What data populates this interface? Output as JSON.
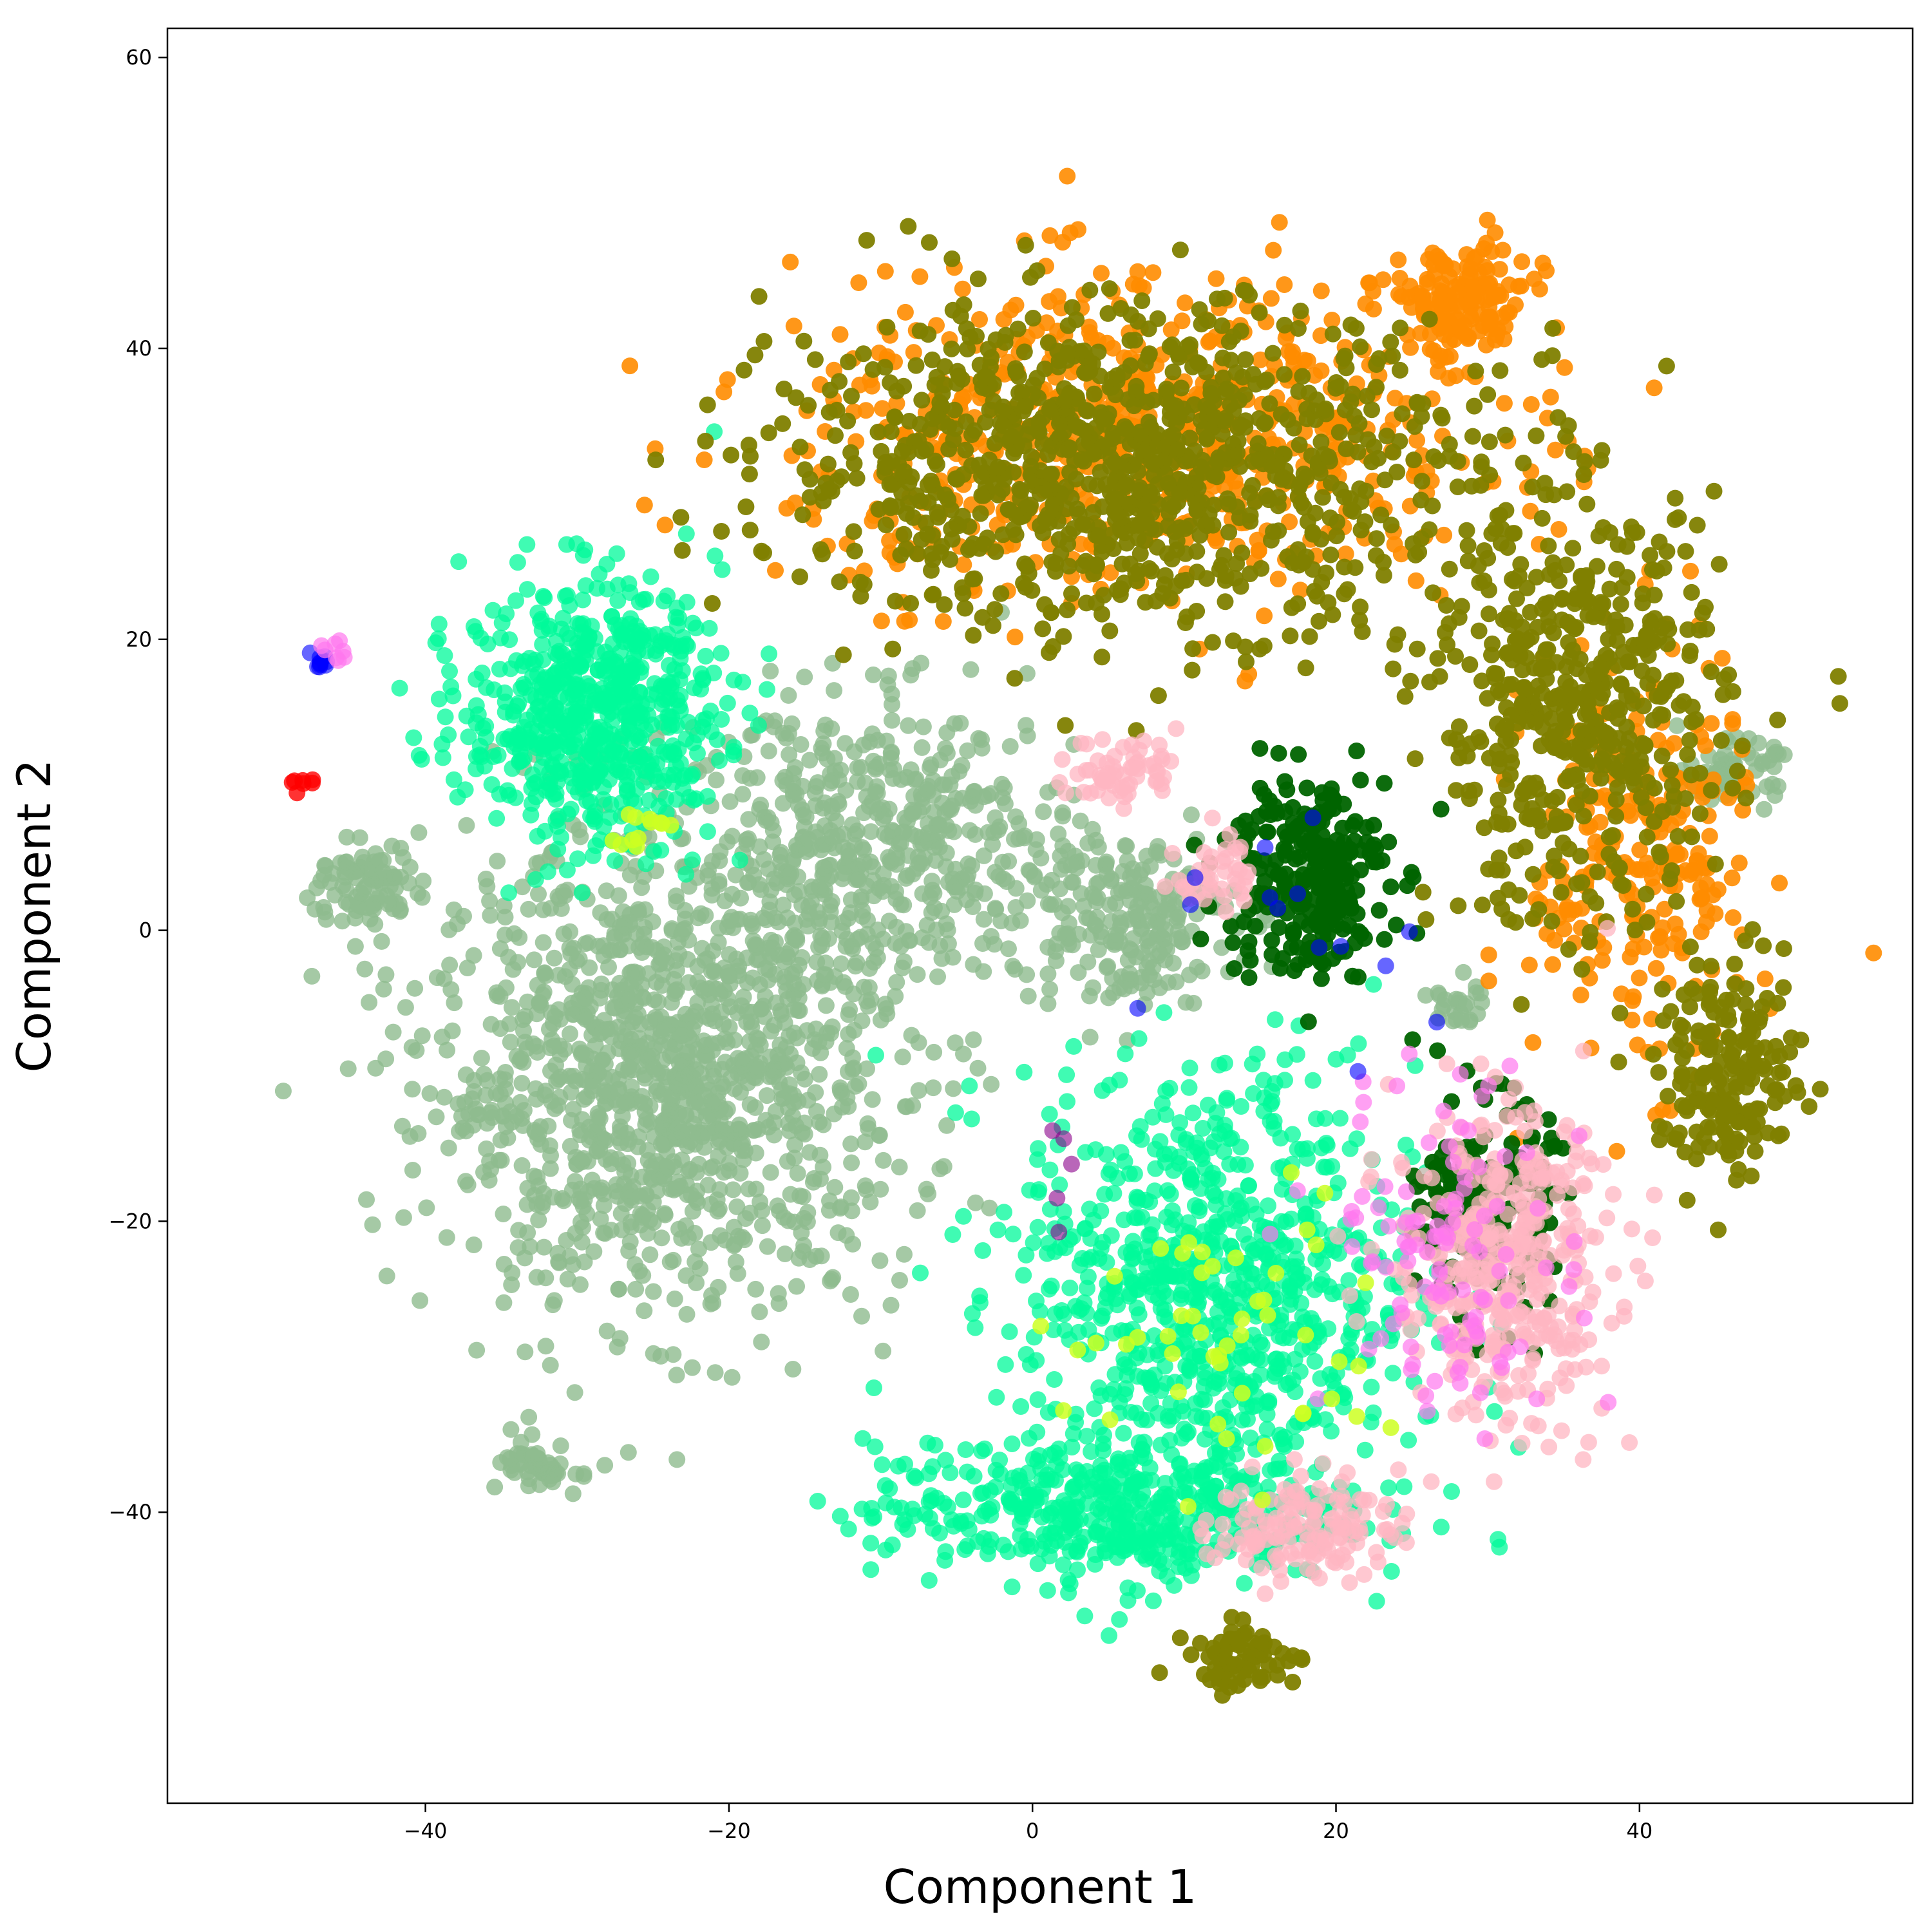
{
  "chart_data": {
    "type": "scatter",
    "title": "",
    "xlabel": "Component 1",
    "ylabel": "Component 2",
    "xlim": [
      -57,
      58
    ],
    "ylim": [
      -60,
      62
    ],
    "xticks": [
      -40,
      -20,
      0,
      20,
      40
    ],
    "yticks": [
      -40,
      -20,
      0,
      20,
      40,
      60
    ],
    "xtick_labels": [
      "−40",
      "−20",
      "0",
      "20",
      "40"
    ],
    "ytick_labels": [
      "−40",
      "−20",
      "0",
      "20",
      "40",
      "60"
    ],
    "grid": false,
    "legend": "none",
    "clusters": [
      {
        "color": "#8fbc8f",
        "alpha": 0.8,
        "center": [
          -24,
          -10
        ],
        "spread": [
          13,
          13
        ],
        "n": 1300,
        "label": ""
      },
      {
        "color": "#8fbc8f",
        "alpha": 0.8,
        "center": [
          -10,
          6
        ],
        "spread": [
          11,
          8
        ],
        "n": 500,
        "label": ""
      },
      {
        "color": "#8fbc8f",
        "alpha": 0.8,
        "center": [
          6,
          1
        ],
        "spread": [
          6,
          5
        ],
        "n": 220,
        "label": ""
      },
      {
        "color": "#8fbc8f",
        "alpha": 0.8,
        "center": [
          -44,
          3
        ],
        "spread": [
          3,
          2.5
        ],
        "n": 90,
        "label": ""
      },
      {
        "color": "#8fbc8f",
        "alpha": 0.8,
        "center": [
          -32,
          -37
        ],
        "spread": [
          2.5,
          1.5
        ],
        "n": 50,
        "label": ""
      },
      {
        "color": "#8fbc8f",
        "alpha": 0.8,
        "center": [
          46,
          11
        ],
        "spread": [
          2.5,
          1.6
        ],
        "n": 70,
        "label": ""
      },
      {
        "color": "#8fbc8f",
        "alpha": 0.8,
        "center": [
          28,
          -5
        ],
        "spread": [
          1.5,
          1.5
        ],
        "n": 25,
        "label": ""
      },
      {
        "color": "#00fa9a",
        "alpha": 0.75,
        "center": [
          -29,
          15
        ],
        "spread": [
          7,
          7.5
        ],
        "n": 650,
        "label": ""
      },
      {
        "color": "#00fa9a",
        "alpha": 0.75,
        "center": [
          12,
          -25
        ],
        "spread": [
          11,
          13
        ],
        "n": 850,
        "label": ""
      },
      {
        "color": "#00fa9a",
        "alpha": 0.75,
        "center": [
          5,
          -40
        ],
        "spread": [
          13,
          4
        ],
        "n": 450,
        "label": ""
      },
      {
        "color": "#ff8c00",
        "alpha": 0.9,
        "center": [
          7,
          34
        ],
        "spread": [
          19,
          9
        ],
        "n": 650,
        "label": ""
      },
      {
        "color": "#ff8c00",
        "alpha": 0.9,
        "center": [
          28,
          43
        ],
        "spread": [
          4,
          3.5
        ],
        "n": 160,
        "label": ""
      },
      {
        "color": "#ff8c00",
        "alpha": 0.9,
        "center": [
          40,
          5
        ],
        "spread": [
          6,
          12
        ],
        "n": 260,
        "label": ""
      },
      {
        "color": "#808000",
        "alpha": 0.95,
        "center": [
          6,
          32
        ],
        "spread": [
          19,
          9
        ],
        "n": 1000,
        "label": ""
      },
      {
        "color": "#808000",
        "alpha": 0.95,
        "center": [
          36,
          15
        ],
        "spread": [
          8,
          12
        ],
        "n": 520,
        "label": ""
      },
      {
        "color": "#808000",
        "alpha": 0.95,
        "center": [
          46,
          -10
        ],
        "spread": [
          4,
          6
        ],
        "n": 180,
        "label": ""
      },
      {
        "color": "#808000",
        "alpha": 0.95,
        "center": [
          14,
          -50
        ],
        "spread": [
          3,
          1.8
        ],
        "n": 70,
        "label": ""
      },
      {
        "color": "#006400",
        "alpha": 0.95,
        "center": [
          18,
          4
        ],
        "spread": [
          4.5,
          6
        ],
        "n": 260,
        "label": ""
      },
      {
        "color": "#006400",
        "alpha": 0.95,
        "center": [
          30,
          -19
        ],
        "spread": [
          3.5,
          6
        ],
        "n": 200,
        "label": ""
      },
      {
        "color": "#ffb6c1",
        "alpha": 0.75,
        "center": [
          31,
          -23
        ],
        "spread": [
          6,
          9
        ],
        "n": 400,
        "label": ""
      },
      {
        "color": "#ffb6c1",
        "alpha": 0.75,
        "center": [
          18,
          -41
        ],
        "spread": [
          5,
          3
        ],
        "n": 140,
        "label": ""
      },
      {
        "color": "#ffb6c1",
        "alpha": 0.75,
        "center": [
          6,
          11
        ],
        "spread": [
          3,
          2
        ],
        "n": 60,
        "label": ""
      },
      {
        "color": "#ffb6c1",
        "alpha": 0.75,
        "center": [
          12,
          4
        ],
        "spread": [
          2,
          2.5
        ],
        "n": 40,
        "label": ""
      },
      {
        "color": "#ff77ee",
        "alpha": 0.7,
        "center": [
          28,
          -22
        ],
        "spread": [
          7,
          10
        ],
        "n": 110,
        "label": ""
      },
      {
        "color": "#ccff22",
        "alpha": 0.85,
        "center": [
          12,
          -28
        ],
        "spread": [
          10,
          8
        ],
        "n": 50,
        "label": ""
      },
      {
        "color": "#ccff22",
        "alpha": 0.85,
        "center": [
          -25,
          7
        ],
        "spread": [
          2.5,
          1.5
        ],
        "n": 12,
        "label": ""
      },
      {
        "color": "#0000ff",
        "alpha": 0.6,
        "center": [
          -47,
          18.5
        ],
        "spread": [
          0.6,
          0.6
        ],
        "n": 10,
        "label": ""
      },
      {
        "color": "#ff0000",
        "alpha": 0.8,
        "center": [
          -48,
          10
        ],
        "spread": [
          0.6,
          0.5
        ],
        "n": 7,
        "label": ""
      },
      {
        "color": "#ff77ee",
        "alpha": 0.7,
        "center": [
          -46,
          19
        ],
        "spread": [
          0.8,
          0.8
        ],
        "n": 8,
        "label": ""
      },
      {
        "color": "#0000ff",
        "alpha": 0.6,
        "center": [
          20,
          -1
        ],
        "spread": [
          10,
          8
        ],
        "n": 14,
        "label": ""
      },
      {
        "color": "#8b008b",
        "alpha": 0.6,
        "center": [
          2,
          -17
        ],
        "spread": [
          1,
          3
        ],
        "n": 5,
        "label": ""
      }
    ]
  }
}
